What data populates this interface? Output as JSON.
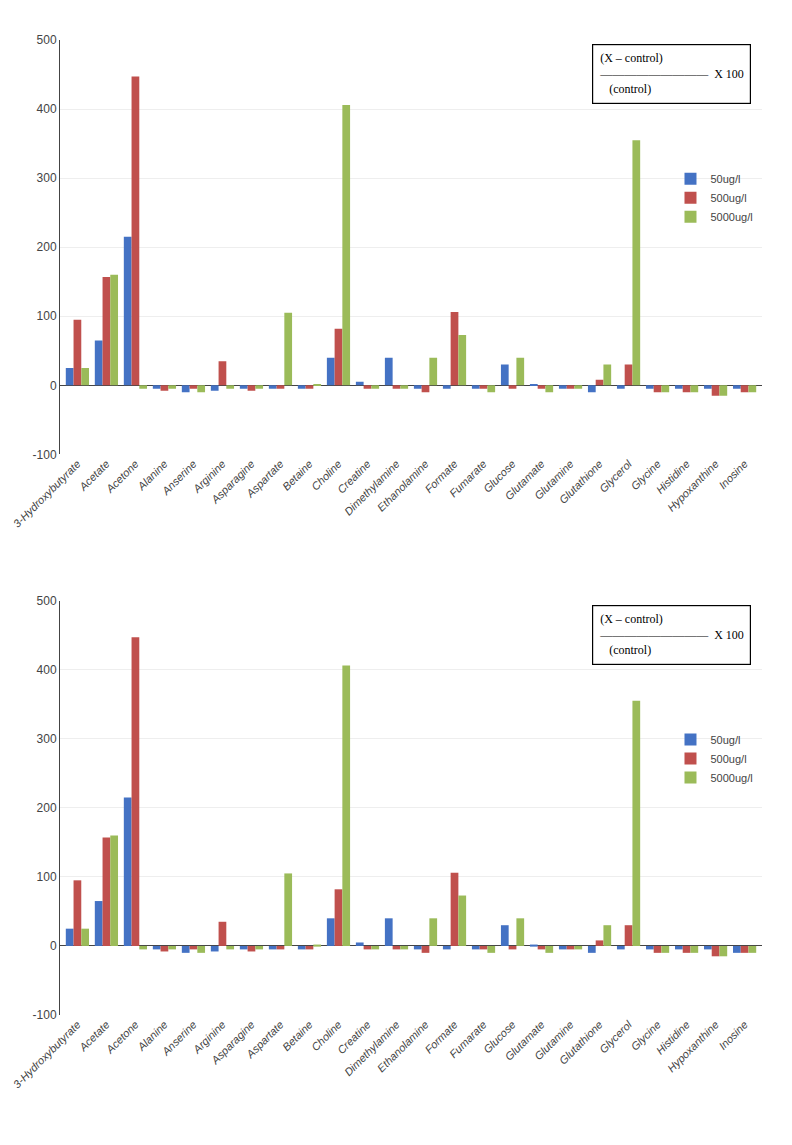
{
  "chart_data": [
    {
      "type": "bar",
      "categories": [
        "3-Hydroxybutyrate",
        "Acetate",
        "Acetone",
        "Alanine",
        "Anserine",
        "Arginine",
        "Asparagine",
        "Aspartate",
        "Betaine",
        "Choline",
        "Creatine",
        "Dimethylamine",
        "Ethanolamine",
        "Formate",
        "Fumarate",
        "Glucose",
        "Glutamate",
        "Glutamine",
        "Glutathione",
        "Glycerol",
        "Glycine",
        "Histidine",
        "Hypoxanthine",
        "Inosine"
      ],
      "series": [
        {
          "name": "50ug/l",
          "color": "#4472c4",
          "values": [
            25,
            65,
            215,
            -5,
            -10,
            -8,
            -5,
            -5,
            -5,
            40,
            5,
            40,
            -5,
            -5,
            -5,
            30,
            2,
            -5,
            -10,
            -5,
            -5,
            -5,
            -5,
            -5
          ]
        },
        {
          "name": "500ug/l",
          "color": "#c0504d",
          "values": [
            95,
            157,
            447,
            -8,
            -5,
            35,
            -8,
            -5,
            -5,
            82,
            -5,
            -5,
            -10,
            106,
            -5,
            -5,
            -5,
            -5,
            8,
            30,
            -10,
            -10,
            -15,
            -10
          ]
        },
        {
          "name": "5000ug/l",
          "color": "#9bbb59",
          "values": [
            25,
            160,
            -5,
            -5,
            -10,
            -5,
            -5,
            105,
            2,
            406,
            -5,
            -5,
            40,
            73,
            -10,
            40,
            -10,
            -5,
            30,
            355,
            -10,
            -10,
            -15,
            -10
          ]
        }
      ],
      "ylim": [
        -100,
        500
      ],
      "yticks": [
        -100,
        0,
        100,
        200,
        300,
        400,
        500
      ],
      "grid": true,
      "legend": "upper right",
      "annotations": [
        "(X – control)\n—————————  X 100\n   (control)"
      ]
    },
    {
      "type": "bar",
      "categories": [
        "3-Hydroxybutyrate",
        "Acetate",
        "Acetone",
        "Alanine",
        "Anserine",
        "Arginine",
        "Asparagine",
        "Aspartate",
        "Betaine",
        "Choline",
        "Creatine",
        "Dimethylamine",
        "Ethanolamine",
        "Formate",
        "Fumarate",
        "Glucose",
        "Glutamate",
        "Glutamine",
        "Glutathione",
        "Glycerol",
        "Glycine",
        "Histidine",
        "Hypoxanthine",
        "Inosine"
      ],
      "series": [
        {
          "name": "50ug/l",
          "color": "#4472c4",
          "values": [
            25,
            65,
            215,
            -5,
            -10,
            -8,
            -5,
            -5,
            -5,
            40,
            5,
            40,
            -5,
            -5,
            -5,
            30,
            2,
            -5,
            -10,
            -5,
            -5,
            -5,
            -5,
            -10
          ]
        },
        {
          "name": "500ug/l",
          "color": "#c0504d",
          "values": [
            95,
            157,
            447,
            -8,
            -5,
            35,
            -8,
            -5,
            -5,
            82,
            -5,
            -5,
            -10,
            106,
            -5,
            -5,
            -5,
            -5,
            8,
            30,
            -10,
            -10,
            -15,
            -10
          ]
        },
        {
          "name": "5000ug/l",
          "color": "#9bbb59",
          "values": [
            25,
            160,
            -5,
            -5,
            -10,
            -5,
            -5,
            105,
            2,
            406,
            -5,
            -5,
            40,
            73,
            -10,
            40,
            -10,
            -5,
            30,
            355,
            -10,
            -10,
            -15,
            -10
          ]
        }
      ],
      "ylim": [
        -100,
        500
      ],
      "yticks": [
        -100,
        0,
        100,
        200,
        300,
        400,
        500
      ],
      "grid": true,
      "legend": "upper right",
      "annotations": [
        "(X – control)\n—————————  X 100\n   (control)"
      ]
    }
  ]
}
